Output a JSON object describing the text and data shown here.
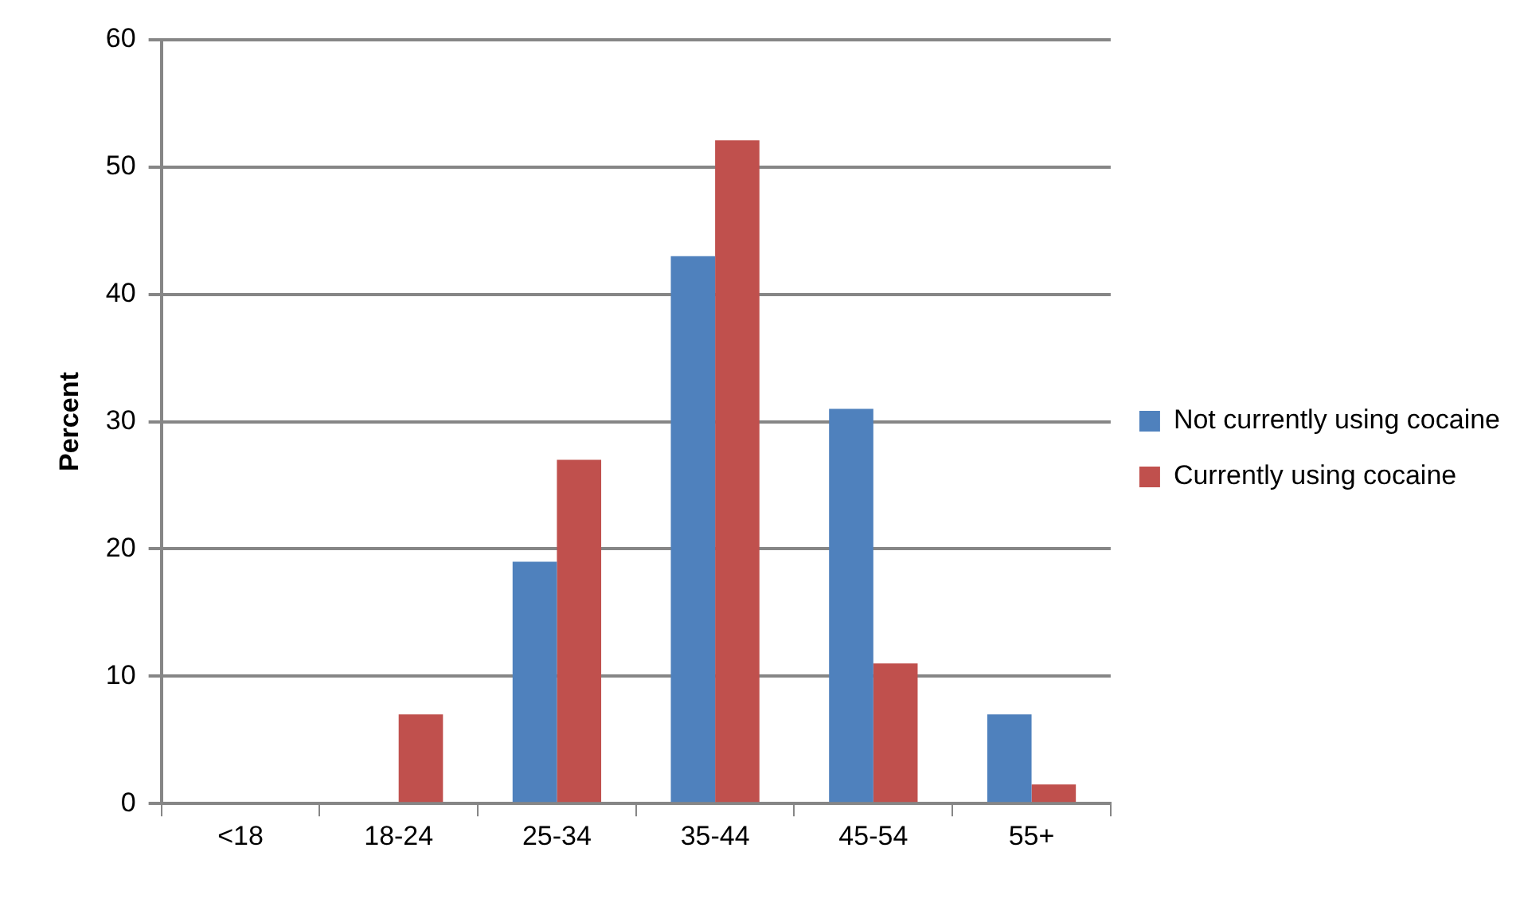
{
  "chart_data": {
    "type": "bar",
    "ylabel": "Percent",
    "categories": [
      "<18",
      "18-24",
      "25-34",
      "35-44",
      "45-54",
      "55+"
    ],
    "series": [
      {
        "name": "Not currently using cocaine",
        "color": "#4f81bd",
        "values": [
          0,
          0,
          19,
          43,
          31,
          7
        ]
      },
      {
        "name": "Currently using cocaine",
        "color": "#c0504d",
        "values": [
          0,
          7,
          27,
          52.1,
          11,
          1.5
        ]
      }
    ],
    "ylim": [
      0,
      60
    ],
    "yticks": [
      0,
      10,
      20,
      30,
      40,
      50,
      60
    ],
    "grid": "y",
    "legend": "right"
  }
}
